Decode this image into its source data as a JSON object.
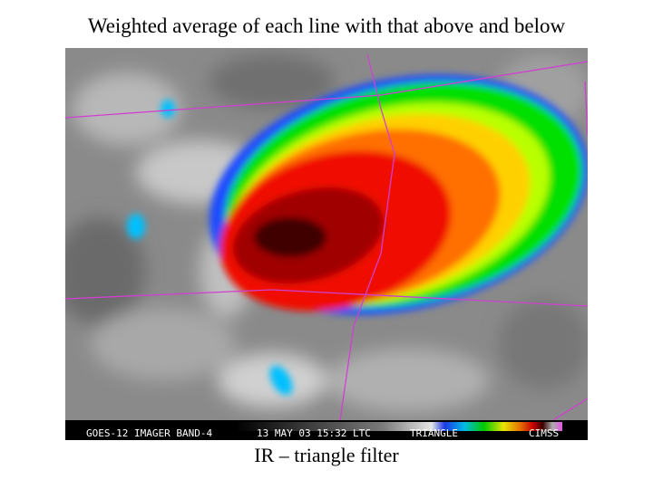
{
  "title": "Weighted average of each line with that above and below",
  "image": {
    "banner": {
      "satellite": "GOES-12 IMAGER BAND-4",
      "timestamp": "13 MAY 03 15:32 LTC",
      "filter": "TRIANGLE",
      "credit": "CIMSS"
    }
  },
  "caption": "IR – triangle filter"
}
